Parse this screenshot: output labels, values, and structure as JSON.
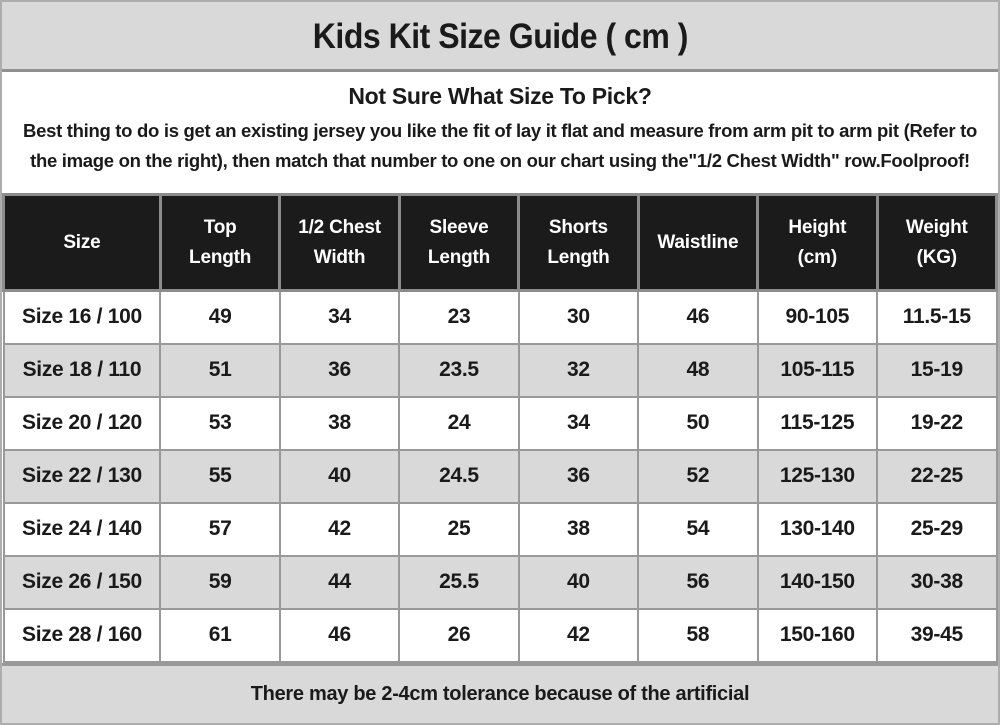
{
  "title": "Kids Kit Size Guide ( cm )",
  "intro": {
    "heading": "Not Sure What Size To Pick?",
    "body": "Best thing to do is get an existing jersey you like the fit of lay it flat and measure from arm pit to arm pit (Refer to the image on the right), then match that number to one on our chart using the\"1/2 Chest Width\" row.Foolproof!"
  },
  "table": {
    "columns": [
      "Size",
      "Top\nLength",
      "1/2 Chest\nWidth",
      "Sleeve\nLength",
      "Shorts\nLength",
      "Waistline",
      "Height\n(cm)",
      "Weight\n(KG)"
    ],
    "rows": [
      [
        "Size 16 / 100",
        "49",
        "34",
        "23",
        "30",
        "46",
        "90-105",
        "11.5-15"
      ],
      [
        "Size 18 / 110",
        "51",
        "36",
        "23.5",
        "32",
        "48",
        "105-115",
        "15-19"
      ],
      [
        "Size 20 / 120",
        "53",
        "38",
        "24",
        "34",
        "50",
        "115-125",
        "19-22"
      ],
      [
        "Size 22 / 130",
        "55",
        "40",
        "24.5",
        "36",
        "52",
        "125-130",
        "22-25"
      ],
      [
        "Size 24 / 140",
        "57",
        "42",
        "25",
        "38",
        "54",
        "130-140",
        "25-29"
      ],
      [
        "Size 26 / 150",
        "59",
        "44",
        "25.5",
        "40",
        "56",
        "140-150",
        "30-38"
      ],
      [
        "Size 28 / 160",
        "61",
        "46",
        "26",
        "42",
        "58",
        "150-160",
        "39-45"
      ]
    ]
  },
  "footer": {
    "note": "There may be 2-4cm tolerance because of the artificial"
  },
  "colors": {
    "banner_bg": "#d9d9d9",
    "header_bg": "#1b1b1b",
    "header_text": "#ffffff",
    "alt_row_bg": "#d9d9d9",
    "gridline": "#999999",
    "text": "#1a1a1a"
  }
}
